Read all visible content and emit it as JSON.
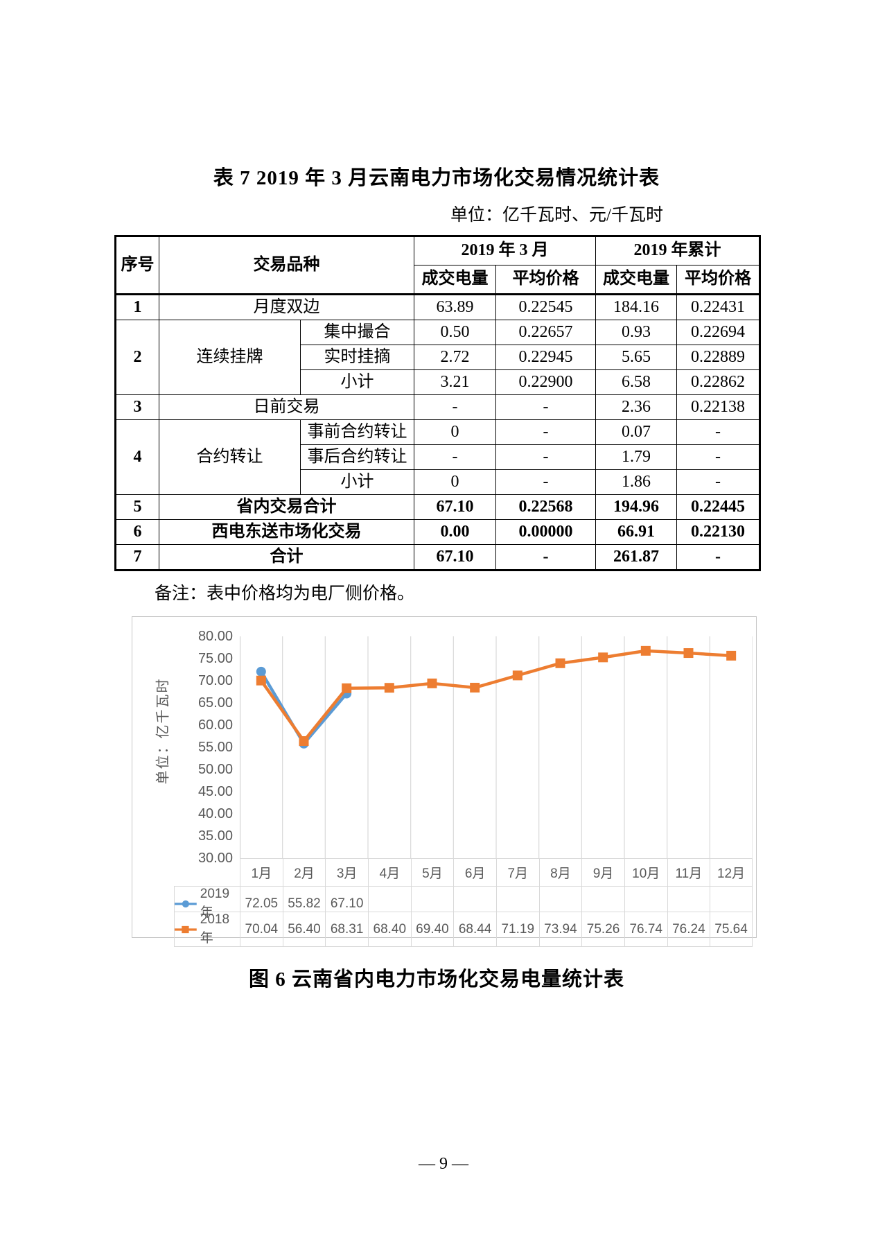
{
  "page": {
    "table_title": "表 7  2019 年 3 月云南电力市场化交易情况统计表",
    "unit_note": "单位：亿千瓦时、元/千瓦时",
    "table_note": "备注：表中价格均为电厂侧价格。",
    "figure_caption": "图 6  云南省内电力市场化交易电量统计表",
    "page_number": "— 9 —"
  },
  "table": {
    "header": {
      "seq": "序号",
      "variety": "交易品种",
      "mar": "2019 年 3 月",
      "cum": "2019 年累计",
      "vol": "成交电量",
      "price": "平均价格"
    },
    "rows": [
      {
        "no": "1",
        "name": "月度双边",
        "v1": "63.89",
        "p1": "0.22545",
        "v2": "184.16",
        "p2": "0.22431"
      },
      {
        "no": "2",
        "group": "连续挂牌",
        "sub": "集中撮合",
        "v1": "0.50",
        "p1": "0.22657",
        "v2": "0.93",
        "p2": "0.22694"
      },
      {
        "sub": "实时挂摘",
        "v1": "2.72",
        "p1": "0.22945",
        "v2": "5.65",
        "p2": "0.22889"
      },
      {
        "sub": "小计",
        "v1": "3.21",
        "p1": "0.22900",
        "v2": "6.58",
        "p2": "0.22862"
      },
      {
        "no": "3",
        "name": "日前交易",
        "v1": "-",
        "p1": "-",
        "v2": "2.36",
        "p2": "0.22138"
      },
      {
        "no": "4",
        "group": "合约转让",
        "sub": "事前合约转让",
        "v1": "0",
        "p1": "-",
        "v2": "0.07",
        "p2": "-"
      },
      {
        "sub": "事后合约转让",
        "v1": "-",
        "p1": "-",
        "v2": "1.79",
        "p2": "-"
      },
      {
        "sub": "小计",
        "v1": "0",
        "p1": "-",
        "v2": "1.86",
        "p2": "-"
      },
      {
        "no": "5",
        "name": "省内交易合计",
        "v1": "67.10",
        "p1": "0.22568",
        "v2": "194.96",
        "p2": "0.22445"
      },
      {
        "no": "6",
        "name": "西电东送市场化交易",
        "v1": "0.00",
        "p1": "0.00000",
        "v2": "66.91",
        "p2": "0.22130"
      },
      {
        "no": "7",
        "name": "合计",
        "v1": "67.10",
        "p1": "-",
        "v2": "261.87",
        "p2": "-"
      }
    ]
  },
  "chart_data": {
    "type": "line",
    "title": "",
    "xlabel": "",
    "ylabel": "单位：亿千瓦时",
    "ylim": [
      30,
      80
    ],
    "ytick_step": 5,
    "grid": "vertical",
    "legend_position": "data-table-below",
    "x": [
      "1月",
      "2月",
      "3月",
      "4月",
      "5月",
      "6月",
      "7月",
      "8月",
      "9月",
      "10月",
      "11月",
      "12月"
    ],
    "series": [
      {
        "name": "2019年",
        "color": "#5B9BD5",
        "marker": "circle",
        "values": [
          72.05,
          55.82,
          67.1,
          null,
          null,
          null,
          null,
          null,
          null,
          null,
          null,
          null
        ]
      },
      {
        "name": "2018年",
        "color": "#ED7D31",
        "marker": "square",
        "values": [
          70.04,
          56.4,
          68.31,
          68.4,
          69.4,
          68.44,
          71.19,
          73.94,
          75.26,
          76.74,
          76.24,
          75.64
        ]
      }
    ]
  }
}
